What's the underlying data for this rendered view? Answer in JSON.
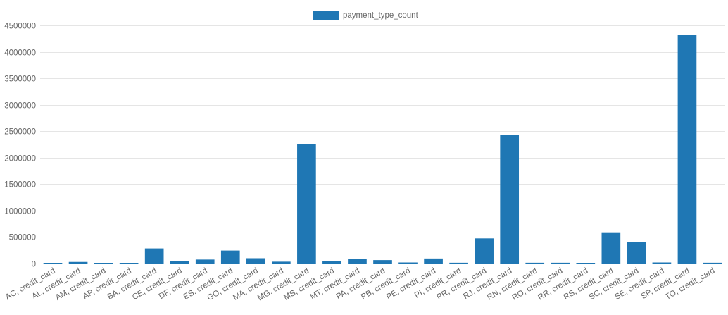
{
  "chart_data": {
    "type": "bar",
    "title": "",
    "xlabel": "",
    "ylabel": "",
    "ylim": [
      0,
      4500000
    ],
    "yticks": [
      0,
      500000,
      1000000,
      1500000,
      2000000,
      2500000,
      3000000,
      3500000,
      4000000,
      4500000
    ],
    "grid": true,
    "legend_position": "top-center",
    "colors": {
      "bar": "#1f77b4",
      "grid": "#e5e5e5",
      "axis": "#666666"
    },
    "categories": [
      "AC, credit_card",
      "AL, credit_card",
      "AM, credit_card",
      "AP, credit_card",
      "BA, credit_card",
      "CE, credit_card",
      "DF, credit_card",
      "ES, credit_card",
      "GO, credit_card",
      "MA, credit_card",
      "MG, credit_card",
      "MS, credit_card",
      "MT, credit_card",
      "PA, credit_card",
      "PB, credit_card",
      "PE, credit_card",
      "PI, credit_card",
      "PR, credit_card",
      "RJ, credit_card",
      "RN, credit_card",
      "RO, credit_card",
      "RR, credit_card",
      "RS, credit_card",
      "SC, credit_card",
      "SE, credit_card",
      "SP, credit_card",
      "TO, credit_card"
    ],
    "series": [
      {
        "name": "payment_type_count",
        "values": [
          5000,
          30000,
          5000,
          5000,
          285000,
          50000,
          75000,
          245000,
          100000,
          35000,
          2260000,
          45000,
          90000,
          65000,
          20000,
          95000,
          15000,
          475000,
          2430000,
          15000,
          15000,
          2000,
          590000,
          410000,
          20000,
          4320000,
          15000
        ]
      }
    ]
  }
}
